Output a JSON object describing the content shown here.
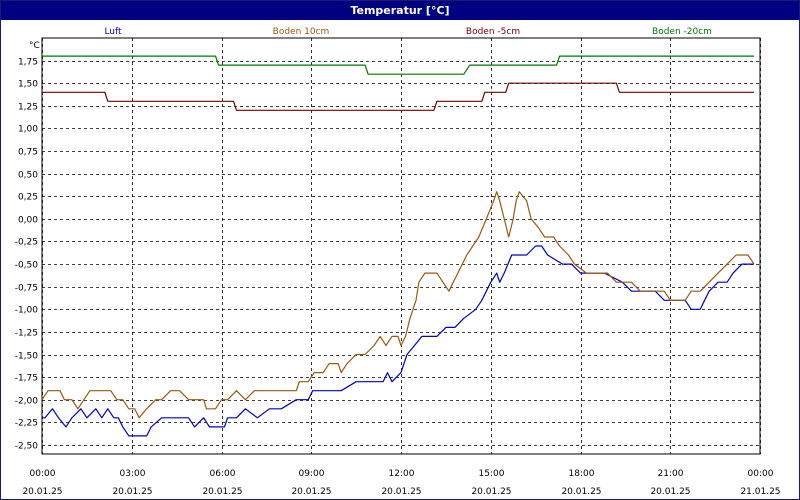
{
  "window": {
    "title": "Temperatur [°C]"
  },
  "colors": {
    "luft": "#0000cc",
    "boden10": "#9a5a10",
    "boden5": "#7a0000",
    "boden20": "#007a00",
    "grid": "#000000",
    "titlebar": "#000080"
  },
  "chart_data": {
    "type": "line",
    "title": "Temperatur [°C]",
    "ylabel": "°C",
    "xlabel": "",
    "ylim": [
      -2.6,
      2.0
    ],
    "xlim": [
      "20.01.25 00:00",
      "21.01.25 00:00"
    ],
    "grid": true,
    "legend_position": "top",
    "yticks": [
      "-2,50",
      "-2,25",
      "-2,00",
      "-1,75",
      "-1,50",
      "-1,25",
      "-1,00",
      "-0,75",
      "-0,50",
      "-0,25",
      "0,00",
      "0,25",
      "0,50",
      "0,75",
      "1,00",
      "1,25",
      "1,50",
      "1,75"
    ],
    "xtick_times": [
      "00:00",
      "03:00",
      "06:00",
      "09:00",
      "12:00",
      "15:00",
      "18:00",
      "21:00",
      "00:00"
    ],
    "xtick_dates": [
      "20.01.25",
      "20.01.25",
      "20.01.25",
      "20.01.25",
      "20.01.25",
      "20.01.25",
      "20.01.25",
      "20.01.25",
      "21.01.25"
    ],
    "series": [
      {
        "name": "Luft",
        "color": "#0000cc",
        "points": [
          [
            0.0,
            -2.2
          ],
          [
            0.1,
            -2.2
          ],
          [
            0.35,
            -2.1
          ],
          [
            0.55,
            -2.2
          ],
          [
            0.8,
            -2.3
          ],
          [
            1.0,
            -2.2
          ],
          [
            1.3,
            -2.1
          ],
          [
            1.5,
            -2.2
          ],
          [
            1.8,
            -2.1
          ],
          [
            2.0,
            -2.2
          ],
          [
            2.2,
            -2.1
          ],
          [
            2.4,
            -2.2
          ],
          [
            2.55,
            -2.2
          ],
          [
            2.7,
            -2.3
          ],
          [
            2.9,
            -2.4
          ],
          [
            3.1,
            -2.4
          ],
          [
            3.5,
            -2.4
          ],
          [
            3.65,
            -2.3
          ],
          [
            4.0,
            -2.2
          ],
          [
            4.3,
            -2.2
          ],
          [
            4.6,
            -2.2
          ],
          [
            4.9,
            -2.2
          ],
          [
            5.1,
            -2.3
          ],
          [
            5.4,
            -2.2
          ],
          [
            5.6,
            -2.3
          ],
          [
            6.0,
            -2.3
          ],
          [
            6.1,
            -2.3
          ],
          [
            6.2,
            -2.2
          ],
          [
            6.5,
            -2.2
          ],
          [
            6.8,
            -2.1
          ],
          [
            7.2,
            -2.2
          ],
          [
            7.6,
            -2.1
          ],
          [
            8.0,
            -2.1
          ],
          [
            8.5,
            -2.0
          ],
          [
            8.9,
            -2.0
          ],
          [
            9.05,
            -1.9
          ],
          [
            9.5,
            -1.9
          ],
          [
            10.0,
            -1.9
          ],
          [
            10.5,
            -1.8
          ],
          [
            11.0,
            -1.8
          ],
          [
            11.4,
            -1.8
          ],
          [
            11.55,
            -1.7
          ],
          [
            11.7,
            -1.8
          ],
          [
            12.0,
            -1.7
          ],
          [
            12.2,
            -1.5
          ],
          [
            12.45,
            -1.4
          ],
          [
            12.7,
            -1.3
          ],
          [
            13.2,
            -1.3
          ],
          [
            13.5,
            -1.2
          ],
          [
            13.8,
            -1.2
          ],
          [
            14.1,
            -1.1
          ],
          [
            14.5,
            -1.0
          ],
          [
            14.7,
            -0.9
          ],
          [
            15.0,
            -0.7
          ],
          [
            15.2,
            -0.6
          ],
          [
            15.3,
            -0.7
          ],
          [
            15.45,
            -0.6
          ],
          [
            15.7,
            -0.4
          ],
          [
            16.2,
            -0.4
          ],
          [
            16.5,
            -0.3
          ],
          [
            16.7,
            -0.3
          ],
          [
            16.9,
            -0.4
          ],
          [
            17.4,
            -0.5
          ],
          [
            17.7,
            -0.5
          ],
          [
            18.0,
            -0.6
          ],
          [
            18.8,
            -0.6
          ],
          [
            19.4,
            -0.7
          ],
          [
            19.7,
            -0.8
          ],
          [
            20.5,
            -0.8
          ],
          [
            20.8,
            -0.9
          ],
          [
            21.5,
            -0.9
          ],
          [
            21.7,
            -1.0
          ],
          [
            22.0,
            -1.0
          ],
          [
            22.3,
            -0.8
          ],
          [
            22.6,
            -0.7
          ],
          [
            22.9,
            -0.7
          ],
          [
            23.1,
            -0.6
          ],
          [
            23.4,
            -0.5
          ],
          [
            23.8,
            -0.5
          ]
        ]
      },
      {
        "name": "Boden 10cm",
        "color": "#9a5a10",
        "points": [
          [
            0.0,
            -2.0
          ],
          [
            0.2,
            -1.9
          ],
          [
            0.6,
            -1.9
          ],
          [
            0.75,
            -2.0
          ],
          [
            1.0,
            -2.0
          ],
          [
            1.2,
            -2.1
          ],
          [
            1.4,
            -2.0
          ],
          [
            1.6,
            -1.9
          ],
          [
            2.0,
            -1.9
          ],
          [
            2.3,
            -1.9
          ],
          [
            2.5,
            -2.0
          ],
          [
            2.7,
            -2.0
          ],
          [
            2.9,
            -2.1
          ],
          [
            3.1,
            -2.1
          ],
          [
            3.25,
            -2.2
          ],
          [
            3.5,
            -2.1
          ],
          [
            3.8,
            -2.0
          ],
          [
            4.0,
            -2.0
          ],
          [
            4.3,
            -1.9
          ],
          [
            4.6,
            -1.9
          ],
          [
            4.9,
            -2.0
          ],
          [
            5.4,
            -2.0
          ],
          [
            5.5,
            -2.1
          ],
          [
            5.8,
            -2.1
          ],
          [
            6.0,
            -2.0
          ],
          [
            6.2,
            -2.0
          ],
          [
            6.5,
            -1.9
          ],
          [
            6.8,
            -2.0
          ],
          [
            7.1,
            -1.9
          ],
          [
            7.5,
            -1.9
          ],
          [
            8.0,
            -1.9
          ],
          [
            8.5,
            -1.9
          ],
          [
            8.6,
            -1.8
          ],
          [
            8.9,
            -1.8
          ],
          [
            9.1,
            -1.7
          ],
          [
            9.4,
            -1.7
          ],
          [
            9.6,
            -1.6
          ],
          [
            9.9,
            -1.6
          ],
          [
            10.0,
            -1.7
          ],
          [
            10.2,
            -1.6
          ],
          [
            10.5,
            -1.5
          ],
          [
            10.8,
            -1.5
          ],
          [
            11.1,
            -1.4
          ],
          [
            11.3,
            -1.3
          ],
          [
            11.5,
            -1.4
          ],
          [
            11.7,
            -1.3
          ],
          [
            11.9,
            -1.3
          ],
          [
            12.0,
            -1.4
          ],
          [
            12.15,
            -1.3
          ],
          [
            12.3,
            -1.1
          ],
          [
            12.5,
            -0.9
          ],
          [
            12.6,
            -0.7
          ],
          [
            12.8,
            -0.6
          ],
          [
            13.2,
            -0.6
          ],
          [
            13.4,
            -0.7
          ],
          [
            13.6,
            -0.8
          ],
          [
            13.9,
            -0.6
          ],
          [
            14.2,
            -0.4
          ],
          [
            14.6,
            -0.2
          ],
          [
            14.85,
            0.0
          ],
          [
            15.1,
            0.2
          ],
          [
            15.2,
            0.3
          ],
          [
            15.3,
            0.2
          ],
          [
            15.45,
            0.0
          ],
          [
            15.6,
            -0.2
          ],
          [
            15.75,
            0.0
          ],
          [
            15.85,
            0.2
          ],
          [
            15.95,
            0.3
          ],
          [
            16.2,
            0.2
          ],
          [
            16.35,
            0.0
          ],
          [
            16.6,
            -0.1
          ],
          [
            16.8,
            -0.2
          ],
          [
            17.1,
            -0.2
          ],
          [
            17.3,
            -0.3
          ],
          [
            17.6,
            -0.4
          ],
          [
            17.8,
            -0.5
          ],
          [
            18.2,
            -0.6
          ],
          [
            18.6,
            -0.6
          ],
          [
            18.9,
            -0.6
          ],
          [
            19.2,
            -0.7
          ],
          [
            19.7,
            -0.7
          ],
          [
            20.0,
            -0.8
          ],
          [
            20.8,
            -0.8
          ],
          [
            21.0,
            -0.9
          ],
          [
            21.5,
            -0.9
          ],
          [
            21.7,
            -0.8
          ],
          [
            22.0,
            -0.8
          ],
          [
            22.3,
            -0.7
          ],
          [
            22.6,
            -0.6
          ],
          [
            22.9,
            -0.5
          ],
          [
            23.2,
            -0.4
          ],
          [
            23.6,
            -0.4
          ],
          [
            23.8,
            -0.5
          ]
        ]
      },
      {
        "name": "Boden -5cm",
        "color": "#7a0000",
        "points": [
          [
            0.0,
            1.4
          ],
          [
            2.1,
            1.4
          ],
          [
            2.2,
            1.3
          ],
          [
            6.4,
            1.3
          ],
          [
            6.5,
            1.2
          ],
          [
            13.1,
            1.2
          ],
          [
            13.2,
            1.3
          ],
          [
            14.7,
            1.3
          ],
          [
            14.8,
            1.4
          ],
          [
            15.5,
            1.4
          ],
          [
            15.6,
            1.5
          ],
          [
            19.2,
            1.5
          ],
          [
            19.3,
            1.4
          ],
          [
            23.8,
            1.4
          ]
        ]
      },
      {
        "name": "Boden -20cm",
        "color": "#007a00",
        "points": [
          [
            0.0,
            1.8
          ],
          [
            5.8,
            1.8
          ],
          [
            5.9,
            1.7
          ],
          [
            10.8,
            1.7
          ],
          [
            10.9,
            1.6
          ],
          [
            14.1,
            1.6
          ],
          [
            14.3,
            1.7
          ],
          [
            17.2,
            1.7
          ],
          [
            17.3,
            1.8
          ],
          [
            23.8,
            1.8
          ]
        ]
      }
    ]
  }
}
